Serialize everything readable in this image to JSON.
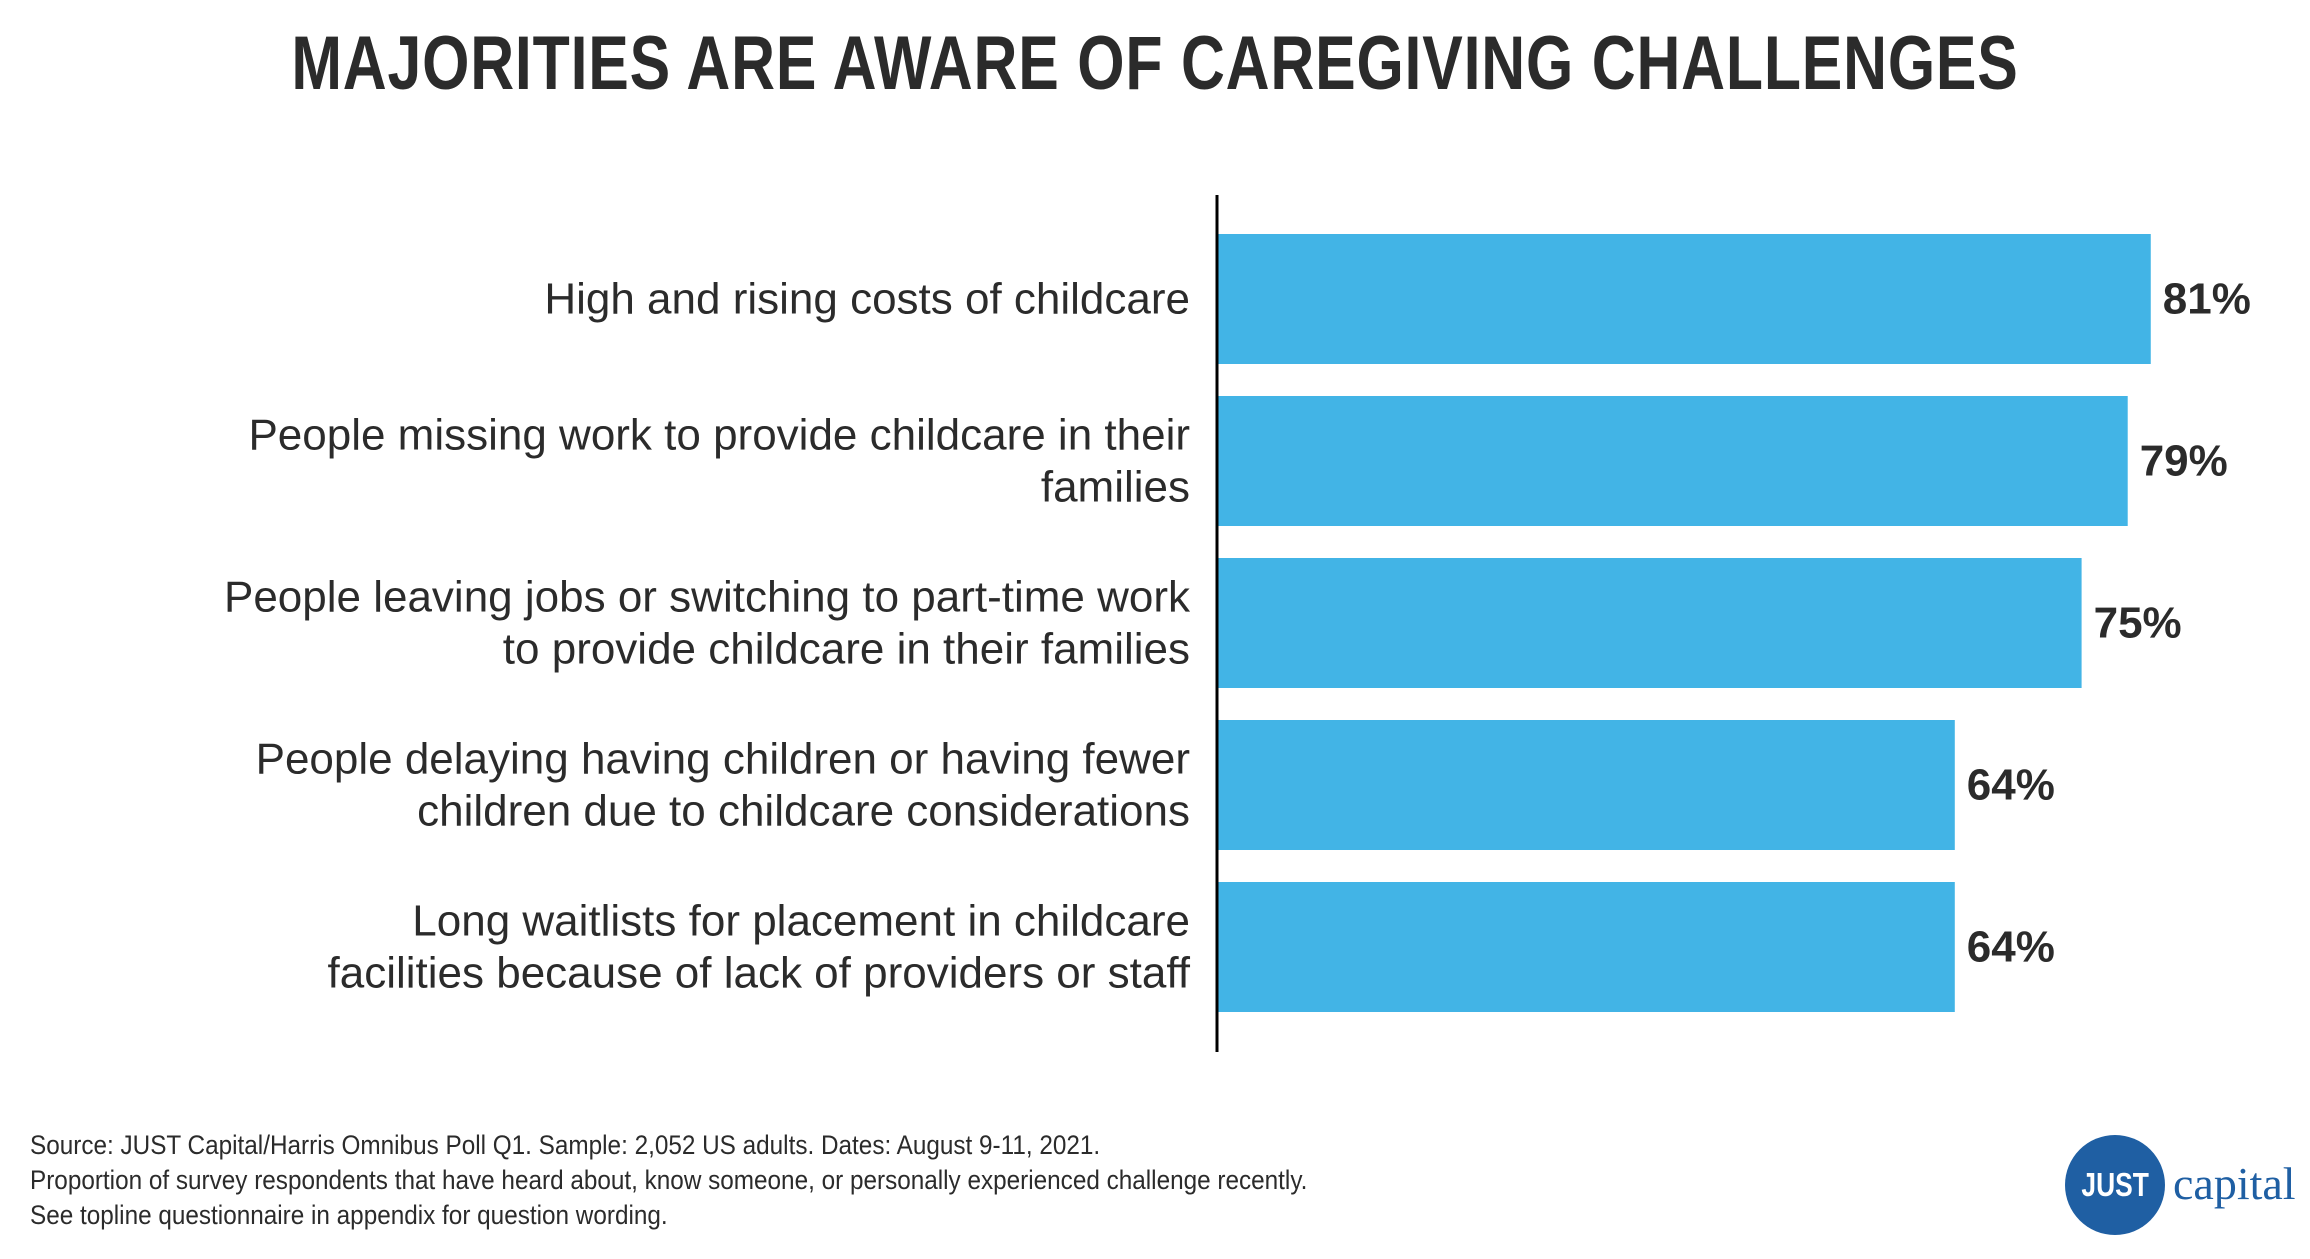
{
  "chart_data": {
    "type": "bar",
    "orientation": "horizontal",
    "title": "MAJORITIES ARE AWARE OF CAREGIVING CHALLENGES",
    "categories": [
      [
        "High and rising costs of childcare"
      ],
      [
        "People missing work to provide childcare in their",
        "families"
      ],
      [
        "People leaving jobs or switching to part-time work",
        "to provide childcare in their families"
      ],
      [
        "People delaying having children or having fewer",
        "children due to childcare considerations"
      ],
      [
        "Long waitlists for placement in childcare",
        "facilities because of lack of providers or staff"
      ]
    ],
    "values": [
      81,
      79,
      75,
      64,
      64
    ],
    "value_labels": [
      "81%",
      "79%",
      "75%",
      "64%",
      "64%"
    ],
    "xlim": [
      0,
      100
    ],
    "bar_color": "#42b4e6",
    "axis_color": "#000000",
    "grid": false
  },
  "footnotes": {
    "line1": "Source: JUST Capital/Harris Omnibus Poll Q1. Sample: 2,052 US adults. Dates: August 9-11, 2021.",
    "line2": "Proportion of survey respondents that have heard about, know someone, or personally experienced challenge recently.",
    "line3": "See topline questionnaire in appendix for question wording."
  },
  "logo": {
    "mark_text": "JUST",
    "word_text": "capital",
    "color": "#1f5fa3"
  }
}
